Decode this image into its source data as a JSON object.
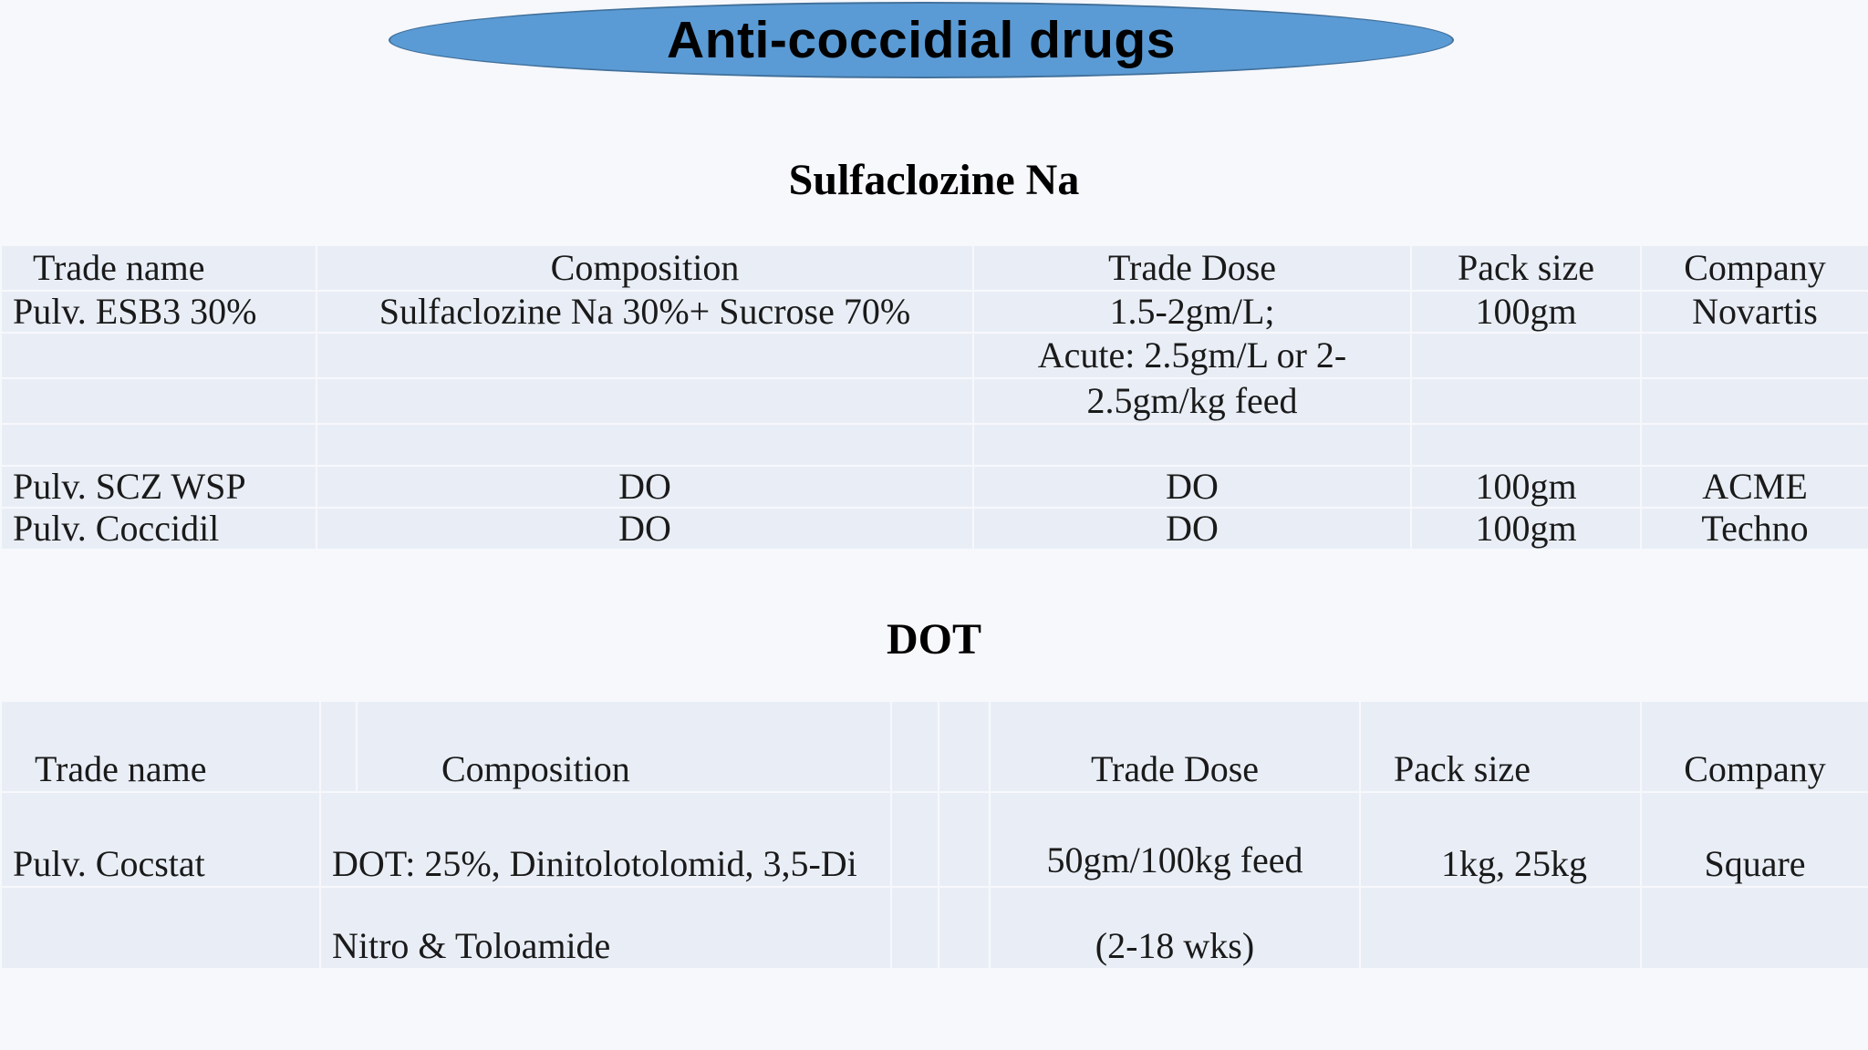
{
  "title": "Anti-coccidial drugs",
  "section1": {
    "heading": "Sulfaclozine Na",
    "headers": [
      "Trade name",
      "Composition",
      "Trade Dose",
      "Pack size",
      "Company"
    ],
    "rows": [
      {
        "trade_name": "Pulv. ESB3 30%",
        "composition": "Sulfaclozine Na 30%+ Sucrose 70%",
        "dose": "1.5-2gm/L;",
        "pack": "100gm",
        "company": "Novartis"
      },
      {
        "trade_name": "",
        "composition": "",
        "dose": "Acute: 2.5gm/L or 2-",
        "pack": "",
        "company": ""
      },
      {
        "trade_name": "",
        "composition": "",
        "dose": "2.5gm/kg feed",
        "pack": "",
        "company": ""
      },
      {
        "trade_name": "",
        "composition": "",
        "dose": "",
        "pack": "",
        "company": ""
      },
      {
        "trade_name": "Pulv. SCZ WSP",
        "composition": "DO",
        "dose": "DO",
        "pack": "100gm",
        "company": "ACME"
      },
      {
        "trade_name": "Pulv. Coccidil",
        "composition": "DO",
        "dose": "DO",
        "pack": "100gm",
        "company": "Techno"
      }
    ]
  },
  "section2": {
    "heading": "DOT",
    "headers": [
      "Trade name",
      "Composition",
      "Trade Dose",
      "Pack size",
      "Company"
    ],
    "rows": [
      {
        "trade_name": "Pulv. Cocstat",
        "composition": "DOT: 25%, Dinitolotolomid, 3,5-Di",
        "dose": "50gm/100kg feed",
        "pack": "1kg, 25kg",
        "company": "Square"
      },
      {
        "trade_name": "",
        "composition": "Nitro & Toloamide",
        "dose": "(2-18 wks)",
        "pack": "",
        "company": ""
      }
    ]
  }
}
